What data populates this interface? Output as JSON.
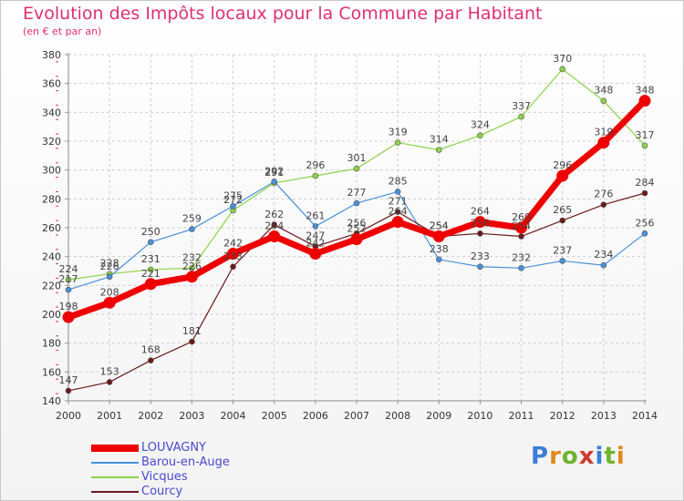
{
  "title": "Evolution des Impôts locaux pour la Commune par Habitant",
  "subtitle": "(en € et par an)",
  "logo": {
    "letters": [
      "P",
      "r",
      "o",
      "x",
      "i",
      "t",
      "i"
    ],
    "colors": [
      "#3a7fd5",
      "#e08a1c",
      "#6fb32c",
      "#d13a2f",
      "#3a7fd5",
      "#6fb32c",
      "#e08a1c"
    ]
  },
  "chart_data": {
    "type": "line",
    "x": [
      2000,
      2001,
      2002,
      2003,
      2004,
      2005,
      2006,
      2007,
      2008,
      2009,
      2010,
      2011,
      2012,
      2013,
      2014
    ],
    "ylim": [
      140,
      380
    ],
    "yticks": [
      140,
      160,
      180,
      200,
      220,
      240,
      260,
      280,
      300,
      320,
      340,
      360,
      380
    ],
    "grid": true,
    "legend_position": "bottom-left",
    "series": [
      {
        "name": "Vicques",
        "color": "#8cd249",
        "width": 1.2,
        "values": [
          224,
          228,
          231,
          232,
          272,
          291,
          296,
          301,
          319,
          314,
          324,
          337,
          370,
          348,
          317
        ]
      },
      {
        "name": "Barou-en-Auge",
        "color": "#4a90d9",
        "width": 1.2,
        "values": [
          217,
          226,
          250,
          259,
          275,
          292,
          261,
          277,
          285,
          238,
          233,
          232,
          237,
          234,
          256
        ]
      },
      {
        "name": "Courcy",
        "color": "#6b1a1a",
        "width": 1.2,
        "values": [
          147,
          153,
          168,
          181,
          233,
          262,
          247,
          256,
          271,
          254,
          256,
          254,
          265,
          276,
          284
        ]
      },
      {
        "name": "LOUVAGNY",
        "color": "#ee0000",
        "width": 7,
        "values": [
          198,
          208,
          221,
          226,
          242,
          254,
          242,
          252,
          264,
          254,
          264,
          260,
          296,
          319,
          348
        ]
      }
    ]
  }
}
